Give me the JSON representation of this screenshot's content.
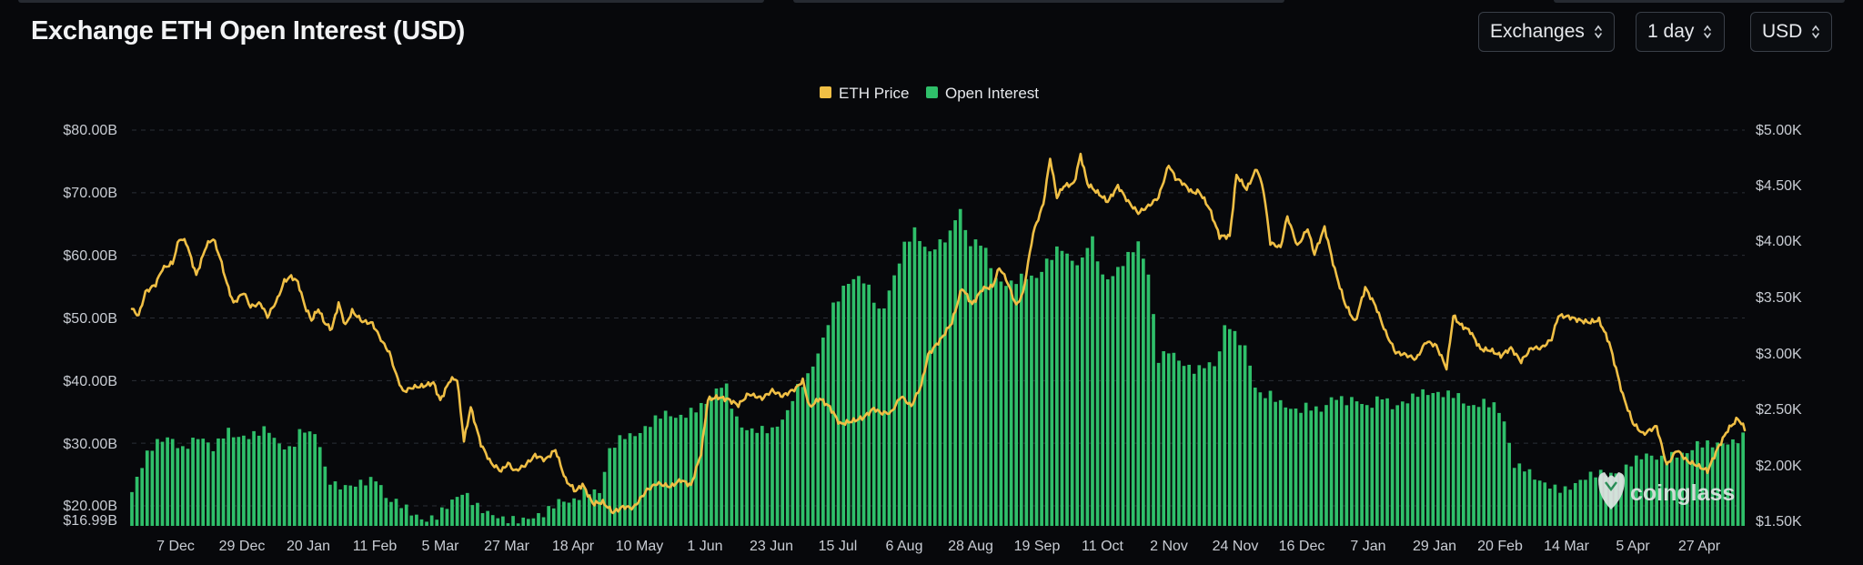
{
  "header": {
    "title": "Exchange ETH Open Interest (USD)",
    "selects": [
      {
        "value": "Exchanges"
      },
      {
        "value": "1 day"
      },
      {
        "value": "USD"
      }
    ]
  },
  "watermark": "coinglass",
  "colors": {
    "background": "#07080b",
    "price_line": "#f0bf45",
    "open_interest": "#2fbf6a",
    "grid": "#2a2e36"
  },
  "chart_data": {
    "type": "bar",
    "legend": [
      {
        "name": "ETH Price",
        "color": "#f0bf45"
      },
      {
        "name": "Open Interest",
        "color": "#2fbf6a"
      }
    ],
    "legend_position": "top-center",
    "grid": true,
    "x_tick_labels": [
      "7 Dec",
      "29 Dec",
      "20 Jan",
      "11 Feb",
      "5 Mar",
      "27 Mar",
      "18 Apr",
      "10 May",
      "1 Jun",
      "23 Jun",
      "15 Jul",
      "6 Aug",
      "28 Aug",
      "19 Sep",
      "11 Oct",
      "2 Nov",
      "24 Nov",
      "16 Dec",
      "7 Jan",
      "29 Jan",
      "20 Feb",
      "14 Mar",
      "5 Apr",
      "27 Apr"
    ],
    "y_left": {
      "ticks": [
        "$16.99B",
        "$20.00B",
        "$30.00B",
        "$40.00B",
        "$50.00B",
        "$60.00B",
        "$70.00B",
        "$80.00B"
      ],
      "range": [
        16.99,
        80
      ]
    },
    "y_right": {
      "ticks": [
        "$1.50K",
        "$2.00K",
        "$2.50K",
        "$3.00K",
        "$3.50K",
        "$4.00K",
        "$4.50K",
        "$5.00K"
      ],
      "range": [
        1500,
        5000
      ]
    },
    "series": [
      {
        "name": "Open Interest",
        "unit": "$B",
        "anchors": [
          [
            0,
            22.2
          ],
          [
            8,
            27.5
          ],
          [
            14,
            30.0
          ],
          [
            22,
            31.4
          ],
          [
            30,
            29.0
          ],
          [
            40,
            30.8
          ],
          [
            48,
            29.3
          ],
          [
            56,
            32.5
          ],
          [
            62,
            30.8
          ],
          [
            70,
            30.7
          ],
          [
            80,
            32.7
          ],
          [
            86,
            30.3
          ],
          [
            94,
            28.7
          ],
          [
            100,
            31.9
          ],
          [
            110,
            31.3
          ],
          [
            115,
            24.8
          ],
          [
            122,
            23.0
          ],
          [
            130,
            22.8
          ],
          [
            138,
            23.9
          ],
          [
            145,
            24.8
          ],
          [
            150,
            21.4
          ],
          [
            158,
            20.1
          ],
          [
            165,
            18.7
          ],
          [
            172,
            17.9
          ],
          [
            180,
            18.6
          ],
          [
            188,
            20.2
          ],
          [
            196,
            22.0
          ],
          [
            204,
            20.2
          ],
          [
            212,
            18.8
          ],
          [
            220,
            17.4
          ],
          [
            228,
            17.6
          ],
          [
            236,
            18.5
          ],
          [
            244,
            18.9
          ],
          [
            252,
            20.4
          ],
          [
            260,
            20.6
          ],
          [
            268,
            22.9
          ],
          [
            276,
            22.1
          ],
          [
            282,
            28.5
          ],
          [
            290,
            31.2
          ],
          [
            298,
            31.7
          ],
          [
            306,
            33.1
          ],
          [
            314,
            34.5
          ],
          [
            322,
            34.1
          ],
          [
            330,
            35.4
          ],
          [
            340,
            36.4
          ],
          [
            350,
            39.8
          ],
          [
            356,
            34.5
          ],
          [
            362,
            32.4
          ],
          [
            370,
            31.9
          ],
          [
            378,
            31.8
          ],
          [
            386,
            34.6
          ],
          [
            392,
            39.0
          ],
          [
            398,
            40.0
          ],
          [
            406,
            44.5
          ],
          [
            414,
            52.0
          ],
          [
            422,
            56.0
          ],
          [
            430,
            56.5
          ],
          [
            436,
            54.0
          ],
          [
            442,
            50.2
          ],
          [
            448,
            55.4
          ],
          [
            456,
            61.8
          ],
          [
            462,
            63.7
          ],
          [
            470,
            60.0
          ],
          [
            476,
            62.0
          ],
          [
            484,
            64.0
          ],
          [
            488,
            68.4
          ],
          [
            494,
            61.4
          ],
          [
            502,
            62.0
          ],
          [
            510,
            56.5
          ],
          [
            518,
            55.4
          ],
          [
            526,
            56.3
          ],
          [
            534,
            56.3
          ],
          [
            540,
            59.3
          ],
          [
            548,
            61.7
          ],
          [
            554,
            59.0
          ],
          [
            560,
            58.0
          ],
          [
            566,
            63.5
          ],
          [
            574,
            56.1
          ],
          [
            582,
            57.6
          ],
          [
            588,
            59.6
          ],
          [
            594,
            61.8
          ],
          [
            600,
            57.4
          ],
          [
            606,
            43.7
          ],
          [
            612,
            44.8
          ],
          [
            620,
            42.3
          ],
          [
            628,
            41.6
          ],
          [
            634,
            43.1
          ],
          [
            640,
            42.5
          ],
          [
            646,
            49.4
          ],
          [
            652,
            46.5
          ],
          [
            658,
            45.0
          ],
          [
            664,
            38.2
          ],
          [
            672,
            37.8
          ],
          [
            680,
            35.6
          ],
          [
            688,
            35.1
          ],
          [
            694,
            36.4
          ],
          [
            702,
            35.3
          ],
          [
            710,
            37.2
          ],
          [
            716,
            36.4
          ],
          [
            722,
            37.4
          ],
          [
            730,
            35.9
          ],
          [
            738,
            37.3
          ],
          [
            744,
            35.4
          ],
          [
            750,
            36.5
          ],
          [
            760,
            38.5
          ],
          [
            766,
            37.8
          ],
          [
            774,
            37.5
          ],
          [
            782,
            38.0
          ],
          [
            790,
            36.0
          ],
          [
            798,
            36.3
          ],
          [
            806,
            35.5
          ],
          [
            810,
            33.4
          ],
          [
            816,
            26.8
          ],
          [
            822,
            26.3
          ],
          [
            830,
            23.7
          ],
          [
            838,
            22.8
          ],
          [
            846,
            22.9
          ],
          [
            854,
            24.0
          ],
          [
            862,
            24.7
          ],
          [
            870,
            25.1
          ],
          [
            878,
            25.5
          ],
          [
            886,
            27.2
          ],
          [
            894,
            27.8
          ],
          [
            902,
            27.5
          ],
          [
            910,
            28.5
          ],
          [
            918,
            28.3
          ],
          [
            924,
            29.5
          ],
          [
            932,
            29.8
          ],
          [
            940,
            30.4
          ],
          [
            946,
            30.3
          ],
          [
            952,
            31.0
          ]
        ]
      },
      {
        "name": "ETH Price",
        "unit": "$",
        "anchors": [
          [
            0,
            3400
          ],
          [
            4,
            3340
          ],
          [
            8,
            3550
          ],
          [
            14,
            3620
          ],
          [
            18,
            3760
          ],
          [
            24,
            3810
          ],
          [
            28,
            4030
          ],
          [
            32,
            4000
          ],
          [
            38,
            3700
          ],
          [
            44,
            3970
          ],
          [
            48,
            4030
          ],
          [
            52,
            3860
          ],
          [
            56,
            3630
          ],
          [
            60,
            3450
          ],
          [
            66,
            3550
          ],
          [
            70,
            3420
          ],
          [
            76,
            3450
          ],
          [
            80,
            3330
          ],
          [
            86,
            3490
          ],
          [
            90,
            3650
          ],
          [
            94,
            3690
          ],
          [
            98,
            3640
          ],
          [
            102,
            3430
          ],
          [
            106,
            3300
          ],
          [
            110,
            3400
          ],
          [
            114,
            3270
          ],
          [
            118,
            3220
          ],
          [
            122,
            3450
          ],
          [
            126,
            3250
          ],
          [
            130,
            3380
          ],
          [
            136,
            3290
          ],
          [
            142,
            3270
          ],
          [
            148,
            3100
          ],
          [
            152,
            3010
          ],
          [
            156,
            2810
          ],
          [
            160,
            2660
          ],
          [
            166,
            2700
          ],
          [
            172,
            2710
          ],
          [
            178,
            2740
          ],
          [
            182,
            2580
          ],
          [
            188,
            2770
          ],
          [
            192,
            2770
          ],
          [
            196,
            2220
          ],
          [
            200,
            2520
          ],
          [
            206,
            2190
          ],
          [
            212,
            2020
          ],
          [
            218,
            1950
          ],
          [
            222,
            2020
          ],
          [
            226,
            1950
          ],
          [
            232,
            2000
          ],
          [
            238,
            2090
          ],
          [
            244,
            2050
          ],
          [
            250,
            2140
          ],
          [
            256,
            1870
          ],
          [
            262,
            1770
          ],
          [
            266,
            1830
          ],
          [
            272,
            1660
          ],
          [
            278,
            1670
          ],
          [
            284,
            1580
          ],
          [
            290,
            1630
          ],
          [
            296,
            1620
          ],
          [
            304,
            1780
          ],
          [
            310,
            1840
          ],
          [
            318,
            1810
          ],
          [
            324,
            1870
          ],
          [
            330,
            1820
          ],
          [
            336,
            2110
          ],
          [
            340,
            2590
          ],
          [
            346,
            2610
          ],
          [
            352,
            2590
          ],
          [
            358,
            2540
          ],
          [
            364,
            2640
          ],
          [
            372,
            2600
          ],
          [
            378,
            2670
          ],
          [
            384,
            2620
          ],
          [
            392,
            2690
          ],
          [
            396,
            2760
          ],
          [
            400,
            2520
          ],
          [
            406,
            2600
          ],
          [
            412,
            2520
          ],
          [
            418,
            2370
          ],
          [
            426,
            2400
          ],
          [
            432,
            2430
          ],
          [
            438,
            2510
          ],
          [
            442,
            2470
          ],
          [
            448,
            2470
          ],
          [
            454,
            2620
          ],
          [
            460,
            2530
          ],
          [
            466,
            2720
          ],
          [
            470,
            2990
          ],
          [
            478,
            3140
          ],
          [
            484,
            3280
          ],
          [
            490,
            3590
          ],
          [
            496,
            3440
          ],
          [
            502,
            3580
          ],
          [
            508,
            3600
          ],
          [
            512,
            3770
          ],
          [
            516,
            3670
          ],
          [
            522,
            3430
          ],
          [
            526,
            3540
          ],
          [
            532,
            4080
          ],
          [
            538,
            4340
          ],
          [
            542,
            4750
          ],
          [
            546,
            4400
          ],
          [
            550,
            4500
          ],
          [
            556,
            4520
          ],
          [
            560,
            4780
          ],
          [
            564,
            4520
          ],
          [
            570,
            4440
          ],
          [
            576,
            4360
          ],
          [
            582,
            4500
          ],
          [
            588,
            4360
          ],
          [
            594,
            4260
          ],
          [
            600,
            4320
          ],
          [
            606,
            4400
          ],
          [
            612,
            4690
          ],
          [
            616,
            4570
          ],
          [
            620,
            4530
          ],
          [
            626,
            4440
          ],
          [
            630,
            4450
          ],
          [
            636,
            4300
          ],
          [
            642,
            4050
          ],
          [
            648,
            4050
          ],
          [
            652,
            4600
          ],
          [
            658,
            4470
          ],
          [
            664,
            4660
          ],
          [
            668,
            4460
          ],
          [
            672,
            3990
          ],
          [
            678,
            3950
          ],
          [
            682,
            4230
          ],
          [
            688,
            3960
          ],
          [
            694,
            4120
          ],
          [
            698,
            3890
          ],
          [
            704,
            4130
          ],
          [
            710,
            3750
          ],
          [
            716,
            3450
          ],
          [
            722,
            3280
          ],
          [
            728,
            3590
          ],
          [
            734,
            3430
          ],
          [
            740,
            3190
          ],
          [
            746,
            3010
          ],
          [
            752,
            2990
          ],
          [
            758,
            2950
          ],
          [
            764,
            3110
          ],
          [
            770,
            3070
          ],
          [
            776,
            2870
          ],
          [
            780,
            3340
          ],
          [
            784,
            3260
          ],
          [
            790,
            3200
          ],
          [
            796,
            3040
          ],
          [
            802,
            3030
          ],
          [
            808,
            2980
          ],
          [
            814,
            3050
          ],
          [
            820,
            2930
          ],
          [
            826,
            3050
          ],
          [
            832,
            3050
          ],
          [
            838,
            3130
          ],
          [
            842,
            3340
          ],
          [
            848,
            3330
          ],
          [
            854,
            3300
          ],
          [
            860,
            3280
          ],
          [
            866,
            3300
          ],
          [
            872,
            3100
          ],
          [
            880,
            2630
          ],
          [
            886,
            2380
          ],
          [
            892,
            2280
          ],
          [
            900,
            2350
          ],
          [
            906,
            2000
          ],
          [
            912,
            2140
          ],
          [
            918,
            2040
          ],
          [
            924,
            2000
          ],
          [
            930,
            1950
          ],
          [
            936,
            2150
          ],
          [
            942,
            2320
          ],
          [
            948,
            2420
          ],
          [
            952,
            2330
          ]
        ]
      }
    ]
  }
}
